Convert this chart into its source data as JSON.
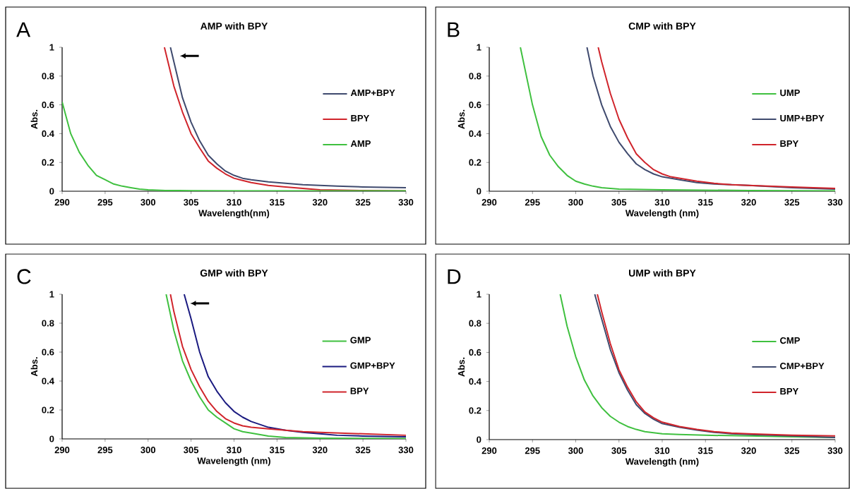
{
  "chart_data": [
    {
      "type": "line",
      "title": "AMP with BPY",
      "xlabel": "Wavelength(nm)",
      "ylabel": "Abs.",
      "annotations": [
        "A"
      ],
      "xlim": [
        290,
        330
      ],
      "ylim": [
        0,
        1
      ],
      "xticks": [
        290,
        295,
        300,
        305,
        310,
        315,
        320,
        325,
        330
      ],
      "yticks": [
        0,
        0.2,
        0.4,
        0.6,
        0.8,
        1
      ],
      "legend": "right",
      "marker": "none",
      "line_style": "solid",
      "series": [
        {
          "name": "AMP+BPY",
          "color": "#3f4a6e",
          "x": [
            302.6,
            303,
            304,
            305,
            306,
            307,
            308,
            309,
            310,
            311,
            312,
            314,
            316,
            318,
            320,
            322,
            325,
            330
          ],
          "values": [
            1,
            0.9,
            0.65,
            0.48,
            0.35,
            0.25,
            0.19,
            0.14,
            0.11,
            0.09,
            0.08,
            0.065,
            0.055,
            0.045,
            0.04,
            0.035,
            0.03,
            0.025
          ]
        },
        {
          "name": "BPY",
          "color": "#d0242b",
          "x": [
            301.9,
            303,
            304,
            305,
            306,
            307,
            308,
            309,
            310,
            311,
            312,
            314,
            316,
            318,
            320,
            325,
            330
          ],
          "values": [
            1,
            0.73,
            0.55,
            0.4,
            0.3,
            0.21,
            0.16,
            0.12,
            0.09,
            0.075,
            0.06,
            0.04,
            0.03,
            0.02,
            0.01,
            0.005,
            0.003
          ]
        },
        {
          "name": "AMP",
          "color": "#3fc03f",
          "x": [
            290,
            291,
            292,
            293,
            294,
            295,
            296,
            297,
            298,
            299,
            300,
            302,
            305,
            310,
            320,
            330
          ],
          "values": [
            0.62,
            0.4,
            0.27,
            0.18,
            0.11,
            0.08,
            0.05,
            0.035,
            0.025,
            0.015,
            0.01,
            0.005,
            0.004,
            0.003,
            0.002,
            0.002
          ]
        }
      ]
    },
    {
      "type": "line",
      "title": "CMP with BPY",
      "xlabel": "Wavelength (nm)",
      "ylabel": "Abs.",
      "annotations": [
        "B"
      ],
      "xlim": [
        290,
        330
      ],
      "ylim": [
        0,
        1
      ],
      "xticks": [
        290,
        295,
        300,
        305,
        310,
        315,
        320,
        325,
        330
      ],
      "yticks": [
        0,
        0.2,
        0.4,
        0.6,
        0.8,
        1
      ],
      "legend": "right",
      "marker": "none",
      "line_style": "solid",
      "series": [
        {
          "name": "UMP",
          "color": "#3fc03f",
          "x": [
            293.6,
            295,
            296,
            297,
            298,
            299,
            300,
            301,
            302,
            303,
            305,
            310,
            320,
            330
          ],
          "values": [
            1,
            0.6,
            0.38,
            0.25,
            0.17,
            0.11,
            0.07,
            0.05,
            0.035,
            0.025,
            0.015,
            0.01,
            0.005,
            0.003
          ]
        },
        {
          "name": "UMP+BPY",
          "color": "#3f4a6e",
          "x": [
            301.3,
            302,
            303,
            304,
            305,
            306,
            307,
            308,
            309,
            310,
            312,
            314,
            316,
            318,
            320,
            325,
            330
          ],
          "values": [
            1,
            0.8,
            0.6,
            0.45,
            0.34,
            0.26,
            0.19,
            0.15,
            0.12,
            0.1,
            0.08,
            0.06,
            0.05,
            0.045,
            0.04,
            0.025,
            0.015
          ]
        },
        {
          "name": "BPY",
          "color": "#d0242b",
          "x": [
            302.6,
            303,
            304,
            305,
            306,
            307,
            308,
            309,
            310,
            311,
            312,
            314,
            316,
            318,
            320,
            325,
            330
          ],
          "values": [
            1,
            0.9,
            0.68,
            0.5,
            0.37,
            0.26,
            0.2,
            0.15,
            0.12,
            0.1,
            0.09,
            0.07,
            0.055,
            0.045,
            0.04,
            0.03,
            0.02
          ]
        }
      ]
    },
    {
      "type": "line",
      "title": "GMP with BPY",
      "xlabel": "Wavelength (nm)",
      "ylabel": "Abs.",
      "annotations": [
        "C"
      ],
      "xlim": [
        290,
        330
      ],
      "ylim": [
        0,
        1
      ],
      "xticks": [
        290,
        295,
        300,
        305,
        310,
        315,
        320,
        325,
        330
      ],
      "yticks": [
        0,
        0.2,
        0.4,
        0.6,
        0.8,
        1
      ],
      "legend": "right",
      "marker": "none",
      "line_style": "solid",
      "series": [
        {
          "name": "GMP",
          "color": "#3fc03f",
          "x": [
            302.1,
            303,
            304,
            305,
            306,
            307,
            308,
            309,
            310,
            311,
            312,
            314,
            316,
            320,
            330
          ],
          "values": [
            1,
            0.75,
            0.54,
            0.4,
            0.29,
            0.2,
            0.15,
            0.11,
            0.07,
            0.05,
            0.04,
            0.02,
            0.01,
            0.005,
            0.003
          ]
        },
        {
          "name": "GMP+BPY",
          "color": "#1a1a80",
          "x": [
            304.2,
            305,
            306,
            307,
            308,
            309,
            310,
            311,
            312,
            314,
            316,
            318,
            320,
            322,
            325,
            330
          ],
          "values": [
            1,
            0.83,
            0.6,
            0.43,
            0.33,
            0.25,
            0.19,
            0.15,
            0.12,
            0.08,
            0.06,
            0.045,
            0.035,
            0.025,
            0.02,
            0.015
          ]
        },
        {
          "name": "BPY",
          "color": "#d0242b",
          "x": [
            302.6,
            303,
            304,
            305,
            306,
            307,
            308,
            309,
            310,
            311,
            312,
            314,
            316,
            318,
            320,
            325,
            330
          ],
          "values": [
            1,
            0.88,
            0.64,
            0.48,
            0.36,
            0.26,
            0.19,
            0.14,
            0.11,
            0.09,
            0.08,
            0.07,
            0.06,
            0.05,
            0.045,
            0.035,
            0.025
          ]
        }
      ]
    },
    {
      "type": "line",
      "title": "UMP with BPY",
      "xlabel": "Wavelength (nm)",
      "ylabel": "Abs.",
      "annotations": [
        "D"
      ],
      "xlim": [
        290,
        330
      ],
      "ylim": [
        0,
        1
      ],
      "xticks": [
        290,
        295,
        300,
        305,
        310,
        315,
        320,
        325,
        330
      ],
      "yticks": [
        0,
        0.2,
        0.4,
        0.6,
        0.8,
        1
      ],
      "legend": "right",
      "marker": "none",
      "line_style": "solid",
      "series": [
        {
          "name": "CMP",
          "color": "#3fc03f",
          "x": [
            298.2,
            299,
            300,
            301,
            302,
            303,
            304,
            305,
            306,
            307,
            308,
            310,
            312,
            315,
            320,
            325,
            330
          ],
          "values": [
            1,
            0.78,
            0.57,
            0.41,
            0.3,
            0.22,
            0.16,
            0.12,
            0.09,
            0.07,
            0.055,
            0.04,
            0.035,
            0.03,
            0.025,
            0.02,
            0.015
          ]
        },
        {
          "name": "CMP+BPY",
          "color": "#3f4a6e",
          "x": [
            302.2,
            303,
            304,
            305,
            306,
            307,
            308,
            309,
            310,
            312,
            314,
            316,
            318,
            320,
            325,
            330
          ],
          "values": [
            1,
            0.83,
            0.62,
            0.46,
            0.34,
            0.24,
            0.18,
            0.14,
            0.11,
            0.085,
            0.065,
            0.05,
            0.04,
            0.035,
            0.025,
            0.015
          ]
        },
        {
          "name": "BPY",
          "color": "#d0242b",
          "x": [
            302.5,
            303,
            304,
            305,
            306,
            307,
            308,
            309,
            310,
            312,
            314,
            316,
            318,
            320,
            325,
            330
          ],
          "values": [
            1,
            0.88,
            0.66,
            0.48,
            0.36,
            0.26,
            0.19,
            0.15,
            0.12,
            0.09,
            0.07,
            0.055,
            0.045,
            0.04,
            0.03,
            0.025
          ]
        }
      ]
    }
  ]
}
